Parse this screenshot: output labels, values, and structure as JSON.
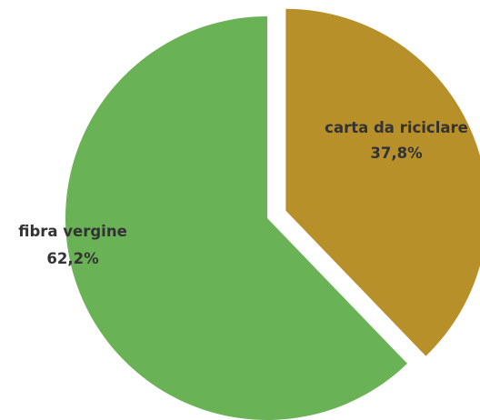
{
  "chart_data": {
    "type": "pie",
    "slices": [
      {
        "label": "carta da riciclare",
        "value_label": "37,8%",
        "value": 37.8,
        "color": "#b8902a",
        "exploded": true
      },
      {
        "label": "fibra vergine",
        "value_label": "62,2%",
        "value": 62.2,
        "color": "#6ab256",
        "exploded": false
      }
    ],
    "start_angle": "12 o'clock",
    "direction": "clockwise",
    "legend": "none"
  }
}
